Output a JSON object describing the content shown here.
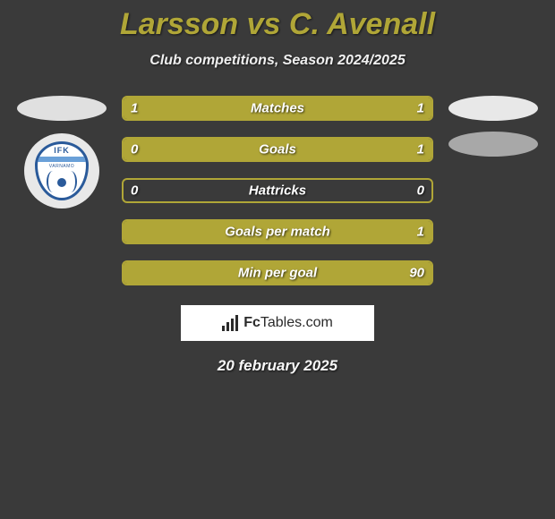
{
  "title": "Larsson vs C. Avenall",
  "subtitle": "Club competitions, Season 2024/2025",
  "date": "20 february 2025",
  "watermark_brand": "Fc",
  "watermark_rest": "Tables.com",
  "colors": {
    "accent": "#b0a637",
    "bar_border": "#b0a637",
    "bar_fill": "#b0a637",
    "title_color": "#b0a637",
    "background": "#3a3a3a"
  },
  "crest": {
    "top_text": "IFK",
    "sub_text": "VARNAMO"
  },
  "stats": [
    {
      "label": "Matches",
      "left_value": "1",
      "right_value": "1",
      "left_fill_pct": 50,
      "right_fill_pct": 50
    },
    {
      "label": "Goals",
      "left_value": "0",
      "right_value": "1",
      "left_fill_pct": 20,
      "right_fill_pct": 80
    },
    {
      "label": "Hattricks",
      "left_value": "0",
      "right_value": "0",
      "left_fill_pct": 0,
      "right_fill_pct": 0
    },
    {
      "label": "Goals per match",
      "left_value": "",
      "right_value": "1",
      "left_fill_pct": 0,
      "right_fill_pct": 100
    },
    {
      "label": "Min per goal",
      "left_value": "",
      "right_value": "90",
      "left_fill_pct": 0,
      "right_fill_pct": 100
    }
  ]
}
